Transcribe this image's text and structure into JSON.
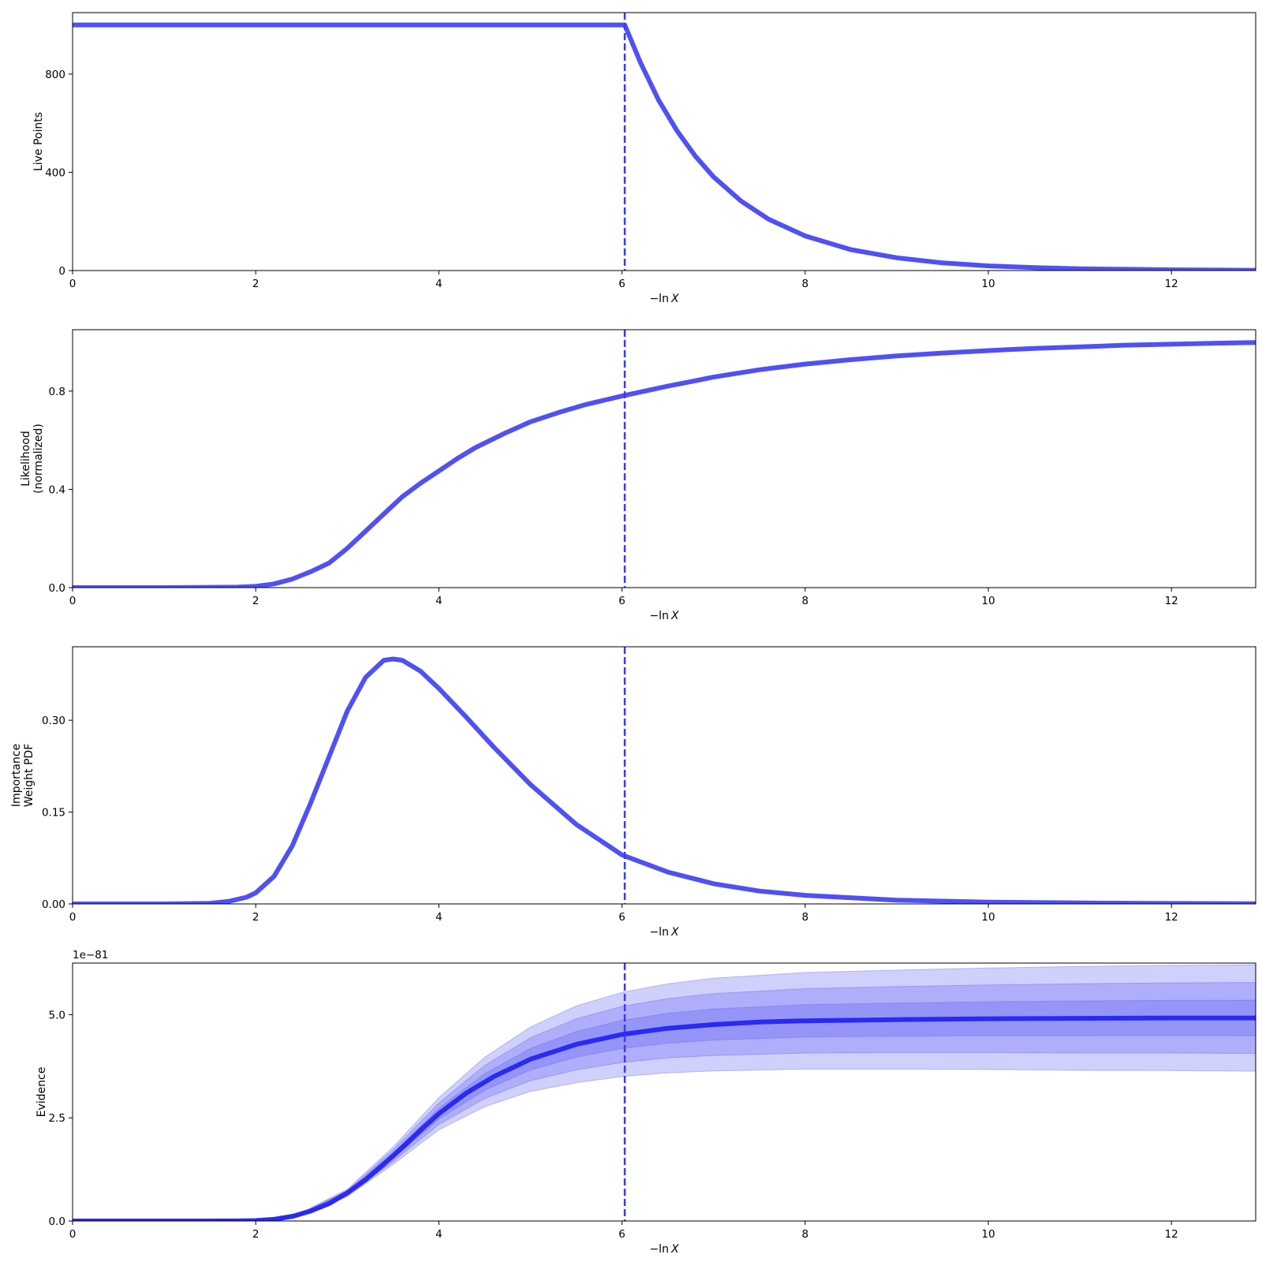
{
  "figure": {
    "xlabel_prefix": "−ln",
    "xlabel_var": "X",
    "line_color": "#5050f5",
    "marker_color": "#3a3af2",
    "evidence_color": "#2a2af2",
    "band_color": "#5555f5",
    "dead_point_marker_x": 6.03
  },
  "chart_data": [
    {
      "type": "line",
      "ylabel": [
        "Live Points"
      ],
      "xlim": [
        0,
        12.92
      ],
      "ylim": [
        0,
        1050
      ],
      "xticks": [
        0,
        2,
        4,
        6,
        8,
        10,
        12
      ],
      "xtick_labels": [
        "0",
        "2",
        "4",
        "6",
        "8",
        "10",
        "12"
      ],
      "yticks": [
        0,
        400,
        800
      ],
      "ytick_labels": [
        "0",
        "400",
        "800"
      ],
      "series": [
        {
          "x": [
            0,
            1,
            2,
            3,
            4,
            5,
            6.0,
            6.03,
            6.2,
            6.4,
            6.6,
            6.8,
            7.0,
            7.3,
            7.6,
            8.0,
            8.5,
            9.0,
            9.5,
            10.0,
            10.5,
            11.0,
            11.5,
            12.0,
            12.5,
            12.92
          ],
          "y": [
            1000,
            1000,
            1000,
            1000,
            1000,
            1000,
            1000,
            1000,
            848,
            694,
            569,
            466,
            381,
            283,
            209,
            141,
            85,
            52,
            31,
            19,
            12,
            7,
            5,
            3,
            2,
            1
          ]
        }
      ]
    },
    {
      "type": "line",
      "ylabel": [
        "Likelihood",
        "(normalized)"
      ],
      "xlim": [
        0,
        12.92
      ],
      "ylim": [
        0,
        1.05
      ],
      "xticks": [
        0,
        2,
        4,
        6,
        8,
        10,
        12
      ],
      "xtick_labels": [
        "0",
        "2",
        "4",
        "6",
        "8",
        "10",
        "12"
      ],
      "yticks": [
        0,
        0.4,
        0.8
      ],
      "ytick_labels": [
        "0.0",
        "0.4",
        "0.8"
      ],
      "series": [
        {
          "x": [
            0,
            1.0,
            1.8,
            2.0,
            2.2,
            2.4,
            2.6,
            2.8,
            3.0,
            3.2,
            3.4,
            3.6,
            3.8,
            4.0,
            4.2,
            4.4,
            4.7,
            5.0,
            5.3,
            5.6,
            6.0,
            6.5,
            7.0,
            7.5,
            8.0,
            8.5,
            9.0,
            9.5,
            10.0,
            10.5,
            11.0,
            11.5,
            12.0,
            12.5,
            12.92
          ],
          "y": [
            0,
            0,
            0.002,
            0.005,
            0.015,
            0.035,
            0.065,
            0.1,
            0.16,
            0.23,
            0.3,
            0.37,
            0.425,
            0.475,
            0.525,
            0.57,
            0.625,
            0.675,
            0.712,
            0.745,
            0.78,
            0.82,
            0.857,
            0.887,
            0.91,
            0.928,
            0.943,
            0.955,
            0.965,
            0.974,
            0.98,
            0.987,
            0.991,
            0.995,
            0.998
          ]
        }
      ]
    },
    {
      "type": "line",
      "ylabel": [
        "Importance",
        "Weight PDF"
      ],
      "xlim": [
        0,
        12.92
      ],
      "ylim": [
        0,
        0.42
      ],
      "xticks": [
        0,
        2,
        4,
        6,
        8,
        10,
        12
      ],
      "xtick_labels": [
        "0",
        "2",
        "4",
        "6",
        "8",
        "10",
        "12"
      ],
      "yticks": [
        0,
        0.15,
        0.3
      ],
      "ytick_labels": [
        "0.00",
        "0.15",
        "0.30"
      ],
      "series": [
        {
          "x": [
            0,
            1.0,
            1.5,
            1.7,
            1.9,
            2.0,
            2.2,
            2.4,
            2.6,
            2.8,
            3.0,
            3.2,
            3.4,
            3.5,
            3.6,
            3.8,
            4.0,
            4.3,
            4.6,
            5.0,
            5.5,
            6.0,
            6.5,
            7.0,
            7.5,
            8.0,
            9.0,
            10.0,
            11.0,
            12.0,
            12.92
          ],
          "y": [
            0,
            0,
            0.001,
            0.004,
            0.011,
            0.018,
            0.045,
            0.095,
            0.165,
            0.24,
            0.315,
            0.37,
            0.398,
            0.4,
            0.398,
            0.38,
            0.352,
            0.305,
            0.256,
            0.195,
            0.13,
            0.08,
            0.052,
            0.033,
            0.021,
            0.014,
            0.006,
            0.003,
            0.0015,
            0.0008,
            0.0004
          ]
        }
      ]
    },
    {
      "type": "line",
      "ylabel": [
        "Evidence"
      ],
      "scale_label": "1e−81",
      "xlim": [
        0,
        12.92
      ],
      "ylim": [
        0,
        6.25
      ],
      "xticks": [
        0,
        2,
        4,
        6,
        8,
        10,
        12
      ],
      "xtick_labels": [
        "0",
        "2",
        "4",
        "6",
        "8",
        "10",
        "12"
      ],
      "yticks": [
        0,
        2.5,
        5.0
      ],
      "ytick_labels": [
        "0.0",
        "2.5",
        "5.0"
      ],
      "series": [
        {
          "x": [
            0,
            1.0,
            1.8,
            2.0,
            2.2,
            2.4,
            2.6,
            2.8,
            3.0,
            3.2,
            3.4,
            3.6,
            3.8,
            4.0,
            4.3,
            4.6,
            5.0,
            5.5,
            6.0,
            6.5,
            7.0,
            7.5,
            8.0,
            9.0,
            10.0,
            11.0,
            12.0,
            12.92
          ],
          "y": [
            0,
            0,
            0.002,
            0.01,
            0.04,
            0.11,
            0.24,
            0.42,
            0.68,
            1.0,
            1.38,
            1.78,
            2.2,
            2.6,
            3.1,
            3.5,
            3.92,
            4.28,
            4.52,
            4.67,
            4.76,
            4.82,
            4.85,
            4.88,
            4.9,
            4.91,
            4.92,
            4.92
          ]
        }
      ],
      "bands": {
        "x": [
          0,
          2.0,
          2.5,
          3.0,
          3.5,
          4.0,
          4.5,
          5.0,
          5.5,
          6.0,
          6.5,
          7.0,
          8.0,
          9.0,
          10.0,
          11.0,
          12.0,
          12.92
        ],
        "sigma": [
          0,
          0.002,
          0.01,
          0.03,
          0.07,
          0.13,
          0.2,
          0.26,
          0.31,
          0.34,
          0.36,
          0.375,
          0.39,
          0.4,
          0.41,
          0.42,
          0.425,
          0.43
        ]
      }
    }
  ]
}
